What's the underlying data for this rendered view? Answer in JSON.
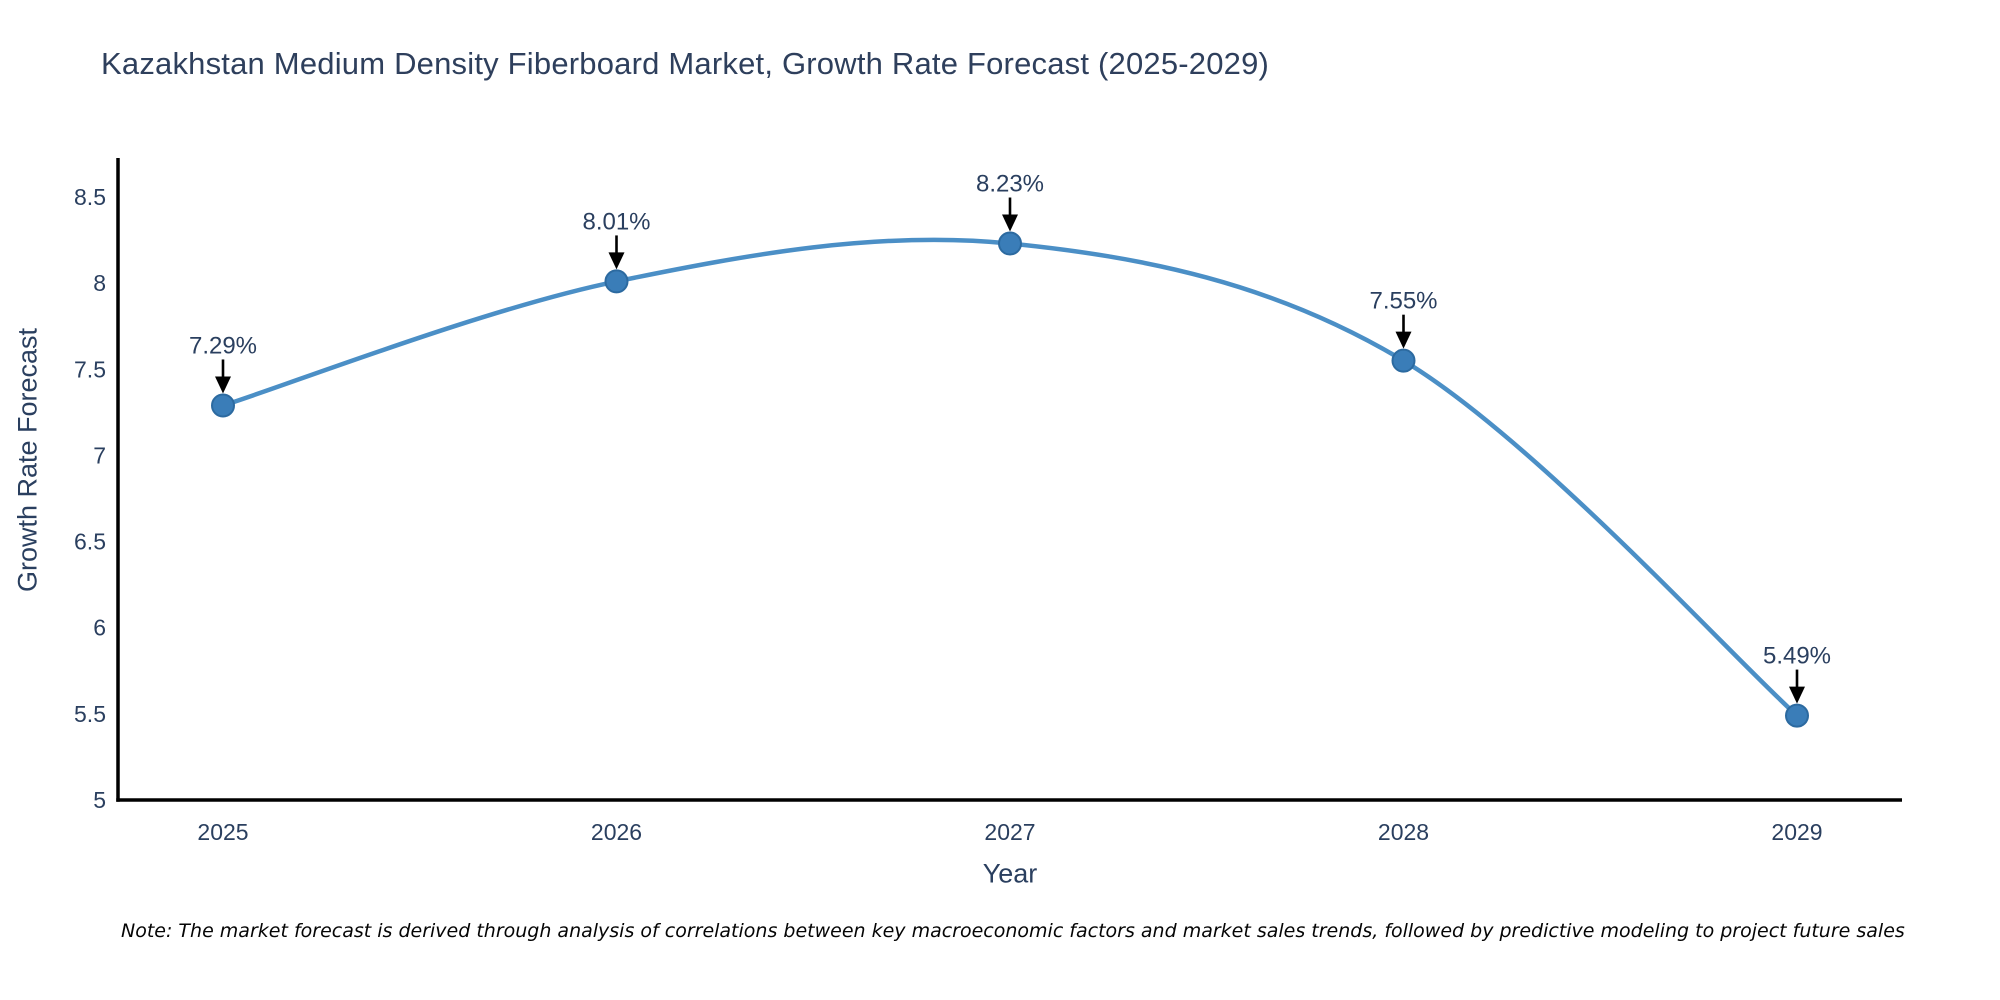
{
  "chart_data": {
    "type": "line",
    "title": "Kazakhstan Medium Density Fiberboard Market, Growth Rate Forecast (2025-2029)",
    "xlabel": "Year",
    "ylabel": "Growth Rate Forecast",
    "categories": [
      "2025",
      "2026",
      "2027",
      "2028",
      "2029"
    ],
    "values": [
      7.29,
      8.01,
      8.23,
      7.55,
      5.49
    ],
    "point_labels": [
      "7.29%",
      "8.01%",
      "8.23%",
      "7.55%",
      "5.49%"
    ],
    "yticks": [
      5,
      5.5,
      6,
      6.5,
      7,
      7.5,
      8,
      8.5
    ],
    "ylim": [
      5,
      8.74
    ],
    "line_shape": "spline",
    "grid": false,
    "legend": false,
    "note": "Note: The market forecast is derived through analysis of correlations between key macroeconomic factors and market sales trends, followed by predictive modeling to project future sales",
    "colors": {
      "line": "#4b8fc6",
      "marker": "#3a7db8",
      "marker_edge": "#2c6aa0",
      "axis": "#000000",
      "text": "#2a3f5f",
      "annotation_arrow": "#000000",
      "background": "#ffffff"
    }
  }
}
